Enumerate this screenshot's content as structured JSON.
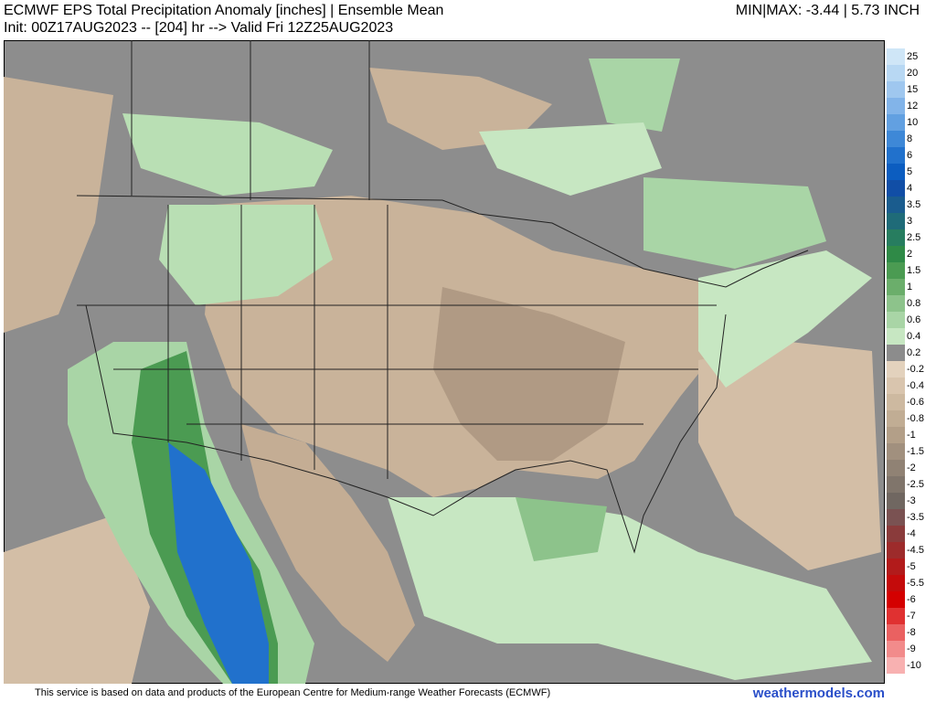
{
  "header": {
    "title": "ECMWF EPS Total Precipitation Anomaly [inches] | Ensemble Mean",
    "subtitle": "Init: 00Z17AUG2023 -- [204] hr --> Valid Fri 12Z25AUG2023",
    "minmax": "MIN|MAX: -3.44 | 5.73 INCH"
  },
  "colorbar": [
    {
      "label": "25",
      "color": "#cfe6f7"
    },
    {
      "label": "20",
      "color": "#b8d8f3"
    },
    {
      "label": "15",
      "color": "#9fc7ef"
    },
    {
      "label": "12",
      "color": "#82b4e9"
    },
    {
      "label": "10",
      "color": "#62a0e1"
    },
    {
      "label": "8",
      "color": "#3e88d7"
    },
    {
      "label": "6",
      "color": "#2171cc"
    },
    {
      "label": "5",
      "color": "#0c5dc0"
    },
    {
      "label": "4",
      "color": "#114ea6"
    },
    {
      "label": "3.5",
      "color": "#1a5c8e"
    },
    {
      "label": "3",
      "color": "#1f6b78"
    },
    {
      "label": "2.5",
      "color": "#277d5f"
    },
    {
      "label": "2",
      "color": "#2f8a47"
    },
    {
      "label": "1.5",
      "color": "#4b9b52"
    },
    {
      "label": "1",
      "color": "#6bae6b"
    },
    {
      "label": "0.8",
      "color": "#8dc38b"
    },
    {
      "label": "0.6",
      "color": "#a9d5a6"
    },
    {
      "label": "0.4",
      "color": "#c7e7c2"
    },
    {
      "label": "0.2",
      "color": "#8c8c8c"
    },
    {
      "label": "-0.2",
      "color": "#e3d2bd"
    },
    {
      "label": "-0.4",
      "color": "#d9c5ae"
    },
    {
      "label": "-0.6",
      "color": "#cdb9a0"
    },
    {
      "label": "-0.8",
      "color": "#c1ad94"
    },
    {
      "label": "-1",
      "color": "#b39f88"
    },
    {
      "label": "-1.5",
      "color": "#a1907e"
    },
    {
      "label": "-2",
      "color": "#908274"
    },
    {
      "label": "-2.5",
      "color": "#80756b"
    },
    {
      "label": "-3",
      "color": "#706761"
    },
    {
      "label": "-3.5",
      "color": "#7a5252"
    },
    {
      "label": "-4",
      "color": "#8a3b3b"
    },
    {
      "label": "-4.5",
      "color": "#9d2b2b"
    },
    {
      "label": "-5",
      "color": "#b21b1b"
    },
    {
      "label": "-5.5",
      "color": "#c40b0b"
    },
    {
      "label": "-6",
      "color": "#d40000"
    },
    {
      "label": "-7",
      "color": "#e03131"
    },
    {
      "label": "-8",
      "color": "#ea6161"
    },
    {
      "label": "-9",
      "color": "#f28b8b"
    },
    {
      "label": "-10",
      "color": "#f8b1b1"
    }
  ],
  "footer": {
    "credit": "This service is based on data and products of the European Centre for Medium-range Weather Forecasts (ECMWF)",
    "site": "weathermodels.com"
  }
}
